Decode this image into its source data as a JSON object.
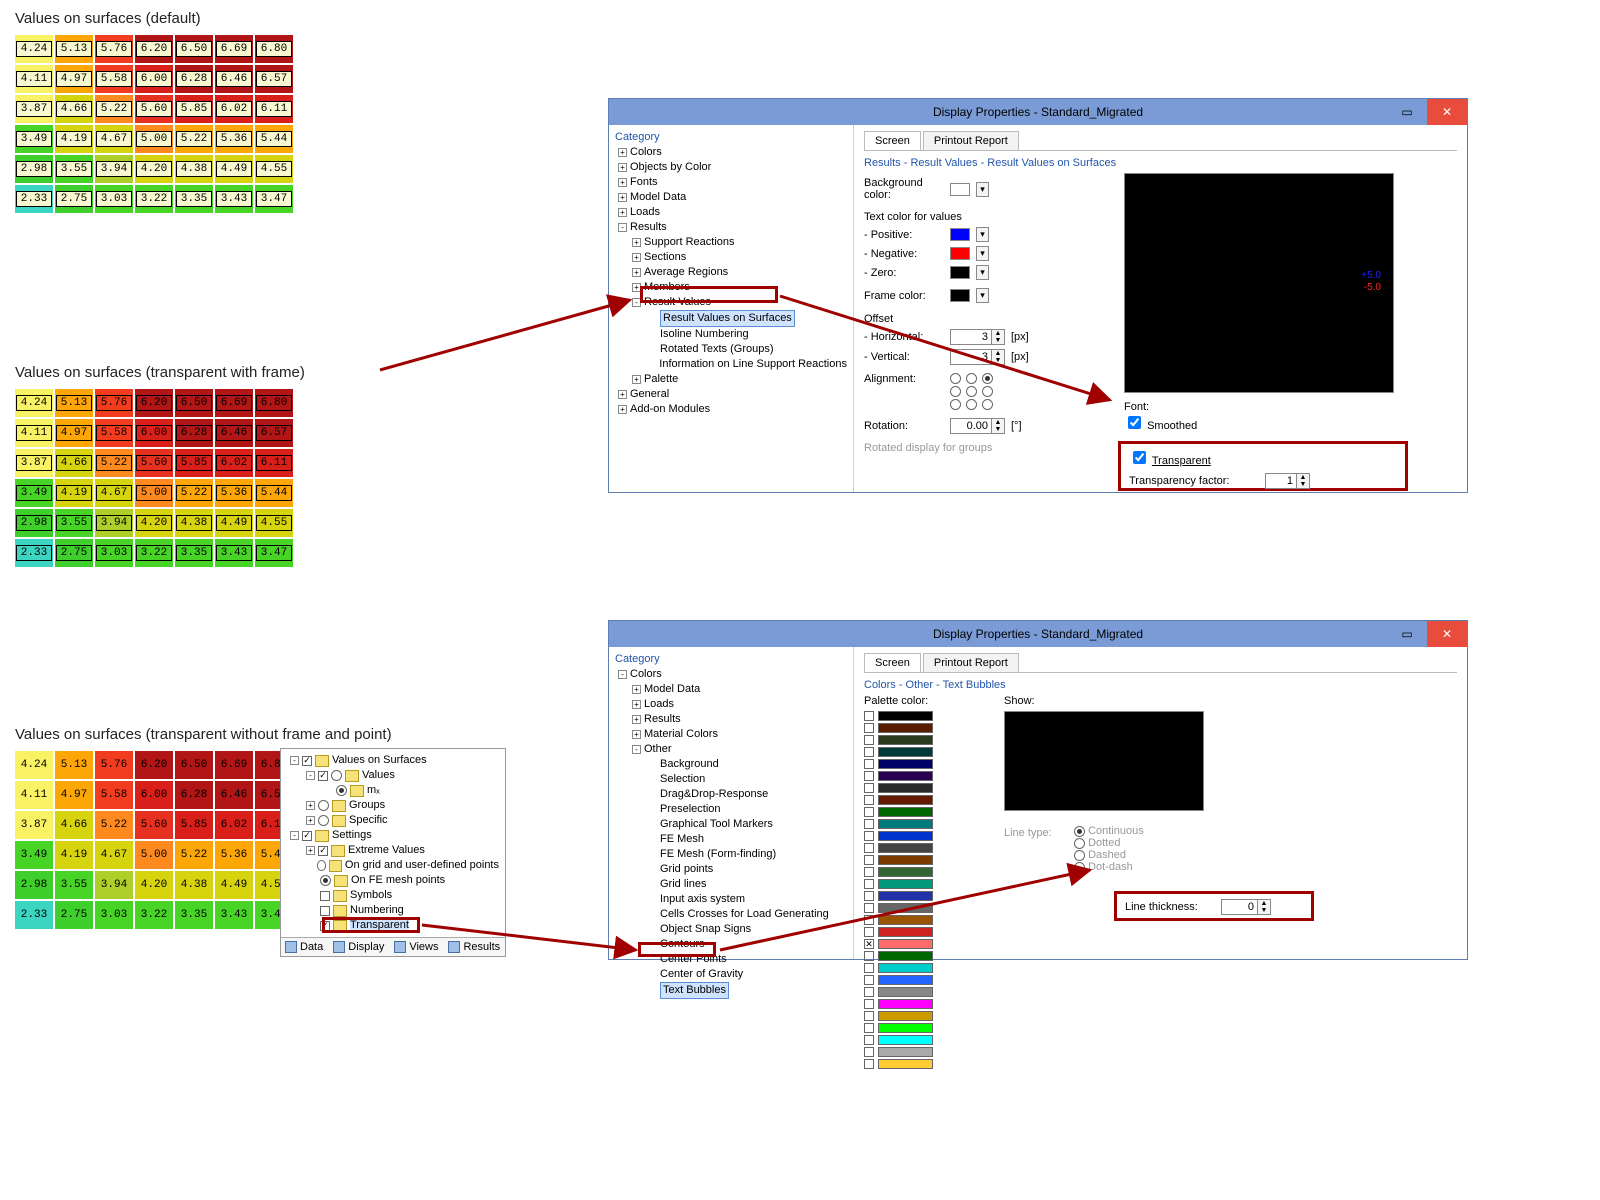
{
  "headings": {
    "h1": "Values on surfaces (default)",
    "h2": "Values on surfaces (transparent with frame)",
    "h3": "Values on surfaces (transparent without frame and point)"
  },
  "grid": {
    "rows": [
      {
        "vals": [
          "4.24",
          "5.13",
          "5.76",
          "6.20",
          "6.50",
          "6.69",
          "6.80"
        ],
        "bg": [
          "#f8f264",
          "#fca607",
          "#f23c1f",
          "#b11515",
          "#b11515",
          "#b11515",
          "#b11515"
        ]
      },
      {
        "vals": [
          "4.11",
          "4.97",
          "5.58",
          "6.00",
          "6.28",
          "6.46",
          "6.57"
        ],
        "bg": [
          "#f8f264",
          "#fca607",
          "#f23c1f",
          "#d91f1a",
          "#b11515",
          "#b11515",
          "#b11515"
        ]
      },
      {
        "vals": [
          "3.87",
          "4.66",
          "5.22",
          "5.60",
          "5.85",
          "6.02",
          "6.11"
        ],
        "bg": [
          "#f8f264",
          "#d6d40f",
          "#fe8a1f",
          "#e63020",
          "#d91f1a",
          "#d91f1a",
          "#d91f1a"
        ]
      },
      {
        "vals": [
          "3.49",
          "4.19",
          "4.67",
          "5.00",
          "5.22",
          "5.36",
          "5.44"
        ],
        "bg": [
          "#47d427",
          "#d6d40f",
          "#d6d40f",
          "#fe8a1f",
          "#fca607",
          "#fca607",
          "#fca607"
        ]
      },
      {
        "vals": [
          "2.98",
          "3.55",
          "3.94",
          "4.20",
          "4.38",
          "4.49",
          "4.55"
        ],
        "bg": [
          "#3fcf2c",
          "#47d427",
          "#aecf29",
          "#d6d40f",
          "#d6d40f",
          "#d6d40f",
          "#d6d40f"
        ]
      },
      {
        "vals": [
          "2.33",
          "2.75",
          "3.03",
          "3.22",
          "3.35",
          "3.43",
          "3.47"
        ],
        "bg": [
          "#3bd5c1",
          "#3fcf2c",
          "#47d427",
          "#47d427",
          "#47d427",
          "#47d427",
          "#47d427"
        ]
      }
    ]
  },
  "dialog1": {
    "title": "Display Properties - Standard_Migrated",
    "category_label": "Category",
    "tree": {
      "l1": [
        "Colors",
        "Objects by Color",
        "Fonts",
        "Model Data",
        "Loads",
        "Results",
        "General",
        "Add-on Modules"
      ],
      "results_children": [
        "Support Reactions",
        "Sections",
        "Average Regions",
        "Members",
        "Result Values",
        "Palette"
      ],
      "rv_children": [
        "Result Values on Surfaces",
        "Isoline Numbering",
        "Rotated Texts (Groups)",
        "Information on Line Support Reactions"
      ]
    },
    "tabs": {
      "screen": "Screen",
      "printout": "Printout Report"
    },
    "breadcrumb": "Results - Result Values - Result Values on Surfaces",
    "labels": {
      "bgcolor": "Background color:",
      "textcolor_hdr": "Text color for values",
      "pos": "- Positive:",
      "neg": "- Negative:",
      "zero": "- Zero:",
      "frame": "Frame color:",
      "offset": "Offset",
      "horiz": "- Horizontal:",
      "vert": "- Vertical:",
      "px": "[px]",
      "align": "Alignment:",
      "rotation": "Rotation:",
      "rot_unit": "[°]",
      "font": "Font:",
      "smoothed": "Smoothed",
      "transparent": "Transparent",
      "tfactor": "Transparency factor:",
      "footer": "Rotated display for groups"
    },
    "colors": {
      "bg": "#ffffff",
      "pos": "#0000ff",
      "neg": "#ff0000",
      "zero": "#000000",
      "frame": "#000000"
    },
    "values": {
      "horiz": "3",
      "vert": "3",
      "rotation": "0.00",
      "tfactor": "1"
    }
  },
  "dialog2": {
    "title": "Display Properties - Standard_Migrated",
    "category_label": "Category",
    "tree": {
      "l1": [
        "Colors"
      ],
      "colors_children": [
        "Model Data",
        "Loads",
        "Results",
        "Material Colors",
        "Other"
      ],
      "other_children": [
        "Background",
        "Selection",
        "Drag&Drop-Response",
        "Preselection",
        "Graphical Tool Markers",
        "FE Mesh",
        "FE Mesh (Form-finding)",
        "Grid points",
        "Grid lines",
        "Input axis system",
        "Cells Crosses for Load Generating",
        "Object Snap Signs",
        "Contours",
        "Center Points",
        "Center of Gravity",
        "Text Bubbles"
      ]
    },
    "tabs": {
      "screen": "Screen",
      "printout": "Printout Report"
    },
    "breadcrumb": "Colors - Other - Text Bubbles",
    "labels": {
      "palette": "Palette color:",
      "show": "Show:",
      "linetype": "Line type:",
      "cont": "Continuous",
      "dotted": "Dotted",
      "dashed": "Dashed",
      "dotdash": "Dot-dash",
      "linethick": "Line thickness:"
    },
    "palette_colors": [
      "#000000",
      "#5a1c00",
      "#2a3a1c",
      "#003a3a",
      "#000066",
      "#2a0052",
      "#2a2a2a",
      "#661a00",
      "#006600",
      "#007a7a",
      "#0033cc",
      "#444444",
      "#7a3a00",
      "#336633",
      "#00997a",
      "#2233aa",
      "#666666",
      "#995500",
      "#cc2222",
      "#ff6a6a",
      "#006600",
      "#00cccc",
      "#2266ff",
      "#888888",
      "#ff00ff",
      "#cc9900",
      "#00ff00",
      "#00ffff",
      "#aaaaaa",
      "#ffcc33"
    ],
    "palette_selected_index": 19,
    "values": {
      "linethick": "0"
    }
  },
  "minitree": {
    "items": [
      {
        "indent": 0,
        "exp": "-",
        "cb": true,
        "label": "Values on Surfaces"
      },
      {
        "indent": 1,
        "exp": "-",
        "cb": true,
        "radio": false,
        "label": "Values"
      },
      {
        "indent": 2,
        "exp": "",
        "radio": true,
        "label": "mₓ"
      },
      {
        "indent": 1,
        "exp": "+",
        "radio": false,
        "label": "Groups"
      },
      {
        "indent": 1,
        "exp": "+",
        "radio": false,
        "label": "Specific"
      },
      {
        "indent": 0,
        "exp": "-",
        "cb": true,
        "label": "Settings"
      },
      {
        "indent": 1,
        "exp": "+",
        "cb": true,
        "label": "Extreme Values"
      },
      {
        "indent": 1,
        "exp": "",
        "radio": false,
        "label": "On grid and user-defined points"
      },
      {
        "indent": 1,
        "exp": "",
        "radio": true,
        "label": "On FE mesh points"
      },
      {
        "indent": 1,
        "exp": "",
        "cb": false,
        "label": "Symbols"
      },
      {
        "indent": 1,
        "exp": "",
        "cb": false,
        "label": "Numbering"
      },
      {
        "indent": 1,
        "exp": "",
        "cb": true,
        "label": "Transparent",
        "hl": true
      }
    ],
    "toolbar": [
      "Data",
      "Display",
      "Views",
      "Results"
    ]
  }
}
